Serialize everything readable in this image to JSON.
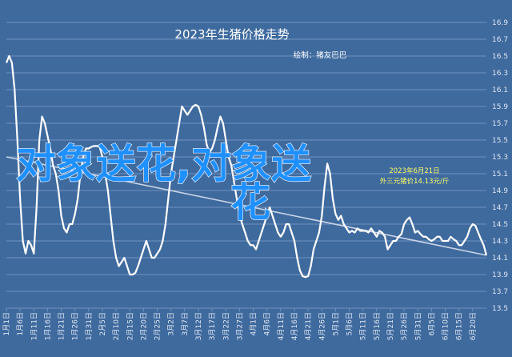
{
  "chart_data": {
    "type": "line",
    "title": "2023年生猪价格走势",
    "subtitle": "绘制：猪友巴巴",
    "ylim": [
      13.5,
      16.9
    ],
    "yticks": [
      13.5,
      13.7,
      13.9,
      14.1,
      14.3,
      14.5,
      14.7,
      14.9,
      15.1,
      15.3,
      15.5,
      15.7,
      15.9,
      16.1,
      16.3,
      16.5,
      16.7,
      16.9
    ],
    "x_tick_labels": [
      "1月1日",
      "1月6日",
      "1月11日",
      "1月16日",
      "1月21日",
      "1月26日",
      "1月31日",
      "2月5日",
      "2月10日",
      "2月15日",
      "2月20日",
      "2月25日",
      "3月2日",
      "3月7日",
      "3月12日",
      "3月17日",
      "3月22日",
      "3月27日",
      "4月1日",
      "4月6日",
      "4月11日",
      "4月16日",
      "4月21日",
      "4月26日",
      "5月1日",
      "5月6日",
      "5月11日",
      "5月16日",
      "5月21日",
      "5月26日",
      "5月31日",
      "6月5日",
      "6月10日",
      "6月15日",
      "6月20日"
    ],
    "n_points": 176,
    "annotation_lines": [
      "2023年6月21日",
      "外三元猪价14.13元/斤"
    ],
    "series": [
      {
        "values": [
          16.42,
          16.5,
          16.42,
          16.1,
          15.5,
          14.8,
          14.3,
          14.15,
          14.3,
          14.25,
          14.15,
          14.7,
          15.5,
          15.78,
          15.7,
          15.55,
          15.4,
          15.2,
          15.1,
          14.9,
          14.6,
          14.45,
          14.4,
          14.5,
          14.5,
          14.62,
          14.8,
          15.1,
          15.3,
          15.4,
          15.4,
          15.42,
          15.43,
          15.43,
          15.42,
          15.3,
          15.1,
          14.9,
          14.6,
          14.3,
          14.1,
          14.0,
          14.05,
          14.1,
          14.0,
          13.9,
          13.9,
          13.92,
          14.0,
          14.1,
          14.2,
          14.3,
          14.2,
          14.1,
          14.1,
          14.15,
          14.2,
          14.3,
          14.5,
          14.8,
          15.1,
          15.3,
          15.5,
          15.7,
          15.9,
          15.85,
          15.8,
          15.85,
          15.9,
          15.92,
          15.9,
          15.8,
          15.65,
          15.45,
          15.35,
          15.4,
          15.5,
          15.65,
          15.78,
          15.7,
          15.5,
          15.3,
          15.2,
          15.0,
          14.8,
          14.6,
          14.5,
          14.4,
          14.3,
          14.25,
          14.25,
          14.2,
          14.3,
          14.4,
          14.5,
          14.6,
          14.7,
          14.6,
          14.5,
          14.4,
          14.35,
          14.4,
          14.5,
          14.5,
          14.4,
          14.3,
          14.1,
          13.95,
          13.88,
          13.87,
          13.88,
          14.0,
          14.2,
          14.3,
          14.4,
          14.6,
          14.95,
          15.22,
          15.1,
          14.8,
          14.62,
          14.55,
          14.6,
          14.5,
          14.45,
          14.4,
          14.42,
          14.4,
          14.45,
          14.42,
          14.42,
          14.42,
          14.4,
          14.45,
          14.4,
          14.35,
          14.42,
          14.4,
          14.35,
          14.2,
          14.25,
          14.3,
          14.3,
          14.35,
          14.38,
          14.5,
          14.55,
          14.58,
          14.5,
          14.4,
          14.42,
          14.38,
          14.35,
          14.35,
          14.32,
          14.3,
          14.32,
          14.35,
          14.35,
          14.3,
          14.3,
          14.3,
          14.35,
          14.32,
          14.3,
          14.25,
          14.25,
          14.3,
          14.35,
          14.45,
          14.5,
          14.48,
          14.4,
          14.32,
          14.25,
          14.13
        ]
      }
    ],
    "trendline": [
      15.3,
      14.13
    ],
    "grid": true,
    "legend": "none"
  },
  "watermark": {
    "line1": "对象送花,对象送",
    "line2": "花"
  },
  "colors": {
    "background": "#3f6a9e",
    "line": "#ffffff",
    "trend": "#c8d4e6",
    "grid": "#6f93bf",
    "annotation": "#ffff66",
    "watermark": "#1e90ff"
  }
}
